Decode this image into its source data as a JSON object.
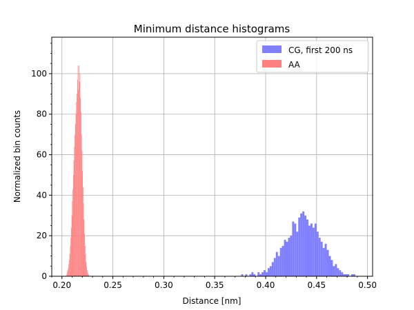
{
  "chart_data": {
    "type": "bar",
    "title": "Minimum distance histograms",
    "xlabel": "Distance [nm]",
    "ylabel": "Normalized bin counts",
    "xlim": [
      0.19,
      0.505
    ],
    "ylim": [
      0,
      118
    ],
    "x_ticks": [
      0.2,
      0.25,
      0.3,
      0.35,
      0.4,
      0.45,
      0.5
    ],
    "x_tick_labels": [
      "0.20",
      "0.25",
      "0.30",
      "0.35",
      "0.40",
      "0.45",
      "0.50"
    ],
    "y_ticks": [
      0,
      20,
      40,
      60,
      80,
      100
    ],
    "y_tick_labels": [
      "0",
      "20",
      "40",
      "60",
      "80",
      "100"
    ],
    "grid": true,
    "legend_position": "top-right",
    "series": [
      {
        "name": "CG, first 200 ns",
        "color": "#8080ff",
        "bin_width": 0.002,
        "bins": [
          [
            0.376,
            1
          ],
          [
            0.378,
            0
          ],
          [
            0.38,
            1
          ],
          [
            0.382,
            0
          ],
          [
            0.384,
            1
          ],
          [
            0.386,
            2
          ],
          [
            0.388,
            1
          ],
          [
            0.39,
            0
          ],
          [
            0.392,
            2
          ],
          [
            0.394,
            1
          ],
          [
            0.396,
            2
          ],
          [
            0.398,
            3
          ],
          [
            0.4,
            2
          ],
          [
            0.402,
            4
          ],
          [
            0.404,
            5
          ],
          [
            0.406,
            7
          ],
          [
            0.408,
            9
          ],
          [
            0.41,
            12
          ],
          [
            0.412,
            10
          ],
          [
            0.414,
            14
          ],
          [
            0.416,
            15
          ],
          [
            0.418,
            18
          ],
          [
            0.42,
            17
          ],
          [
            0.422,
            19
          ],
          [
            0.424,
            20
          ],
          [
            0.426,
            27
          ],
          [
            0.428,
            26
          ],
          [
            0.43,
            22
          ],
          [
            0.432,
            29
          ],
          [
            0.434,
            31
          ],
          [
            0.436,
            32
          ],
          [
            0.438,
            30
          ],
          [
            0.44,
            28
          ],
          [
            0.442,
            25
          ],
          [
            0.444,
            26
          ],
          [
            0.446,
            24
          ],
          [
            0.448,
            26
          ],
          [
            0.45,
            22
          ],
          [
            0.452,
            19
          ],
          [
            0.454,
            17
          ],
          [
            0.456,
            14
          ],
          [
            0.458,
            16
          ],
          [
            0.46,
            13
          ],
          [
            0.462,
            10
          ],
          [
            0.464,
            8
          ],
          [
            0.466,
            5
          ],
          [
            0.468,
            6
          ],
          [
            0.47,
            4
          ],
          [
            0.472,
            3
          ],
          [
            0.474,
            2
          ],
          [
            0.476,
            1
          ],
          [
            0.478,
            1
          ],
          [
            0.48,
            1
          ],
          [
            0.482,
            0
          ],
          [
            0.484,
            1
          ],
          [
            0.486,
            1
          ]
        ]
      },
      {
        "name": "AA",
        "color": "#ff8080",
        "bin_width": 0.0005,
        "bins": [
          [
            0.2045,
            1
          ],
          [
            0.205,
            2
          ],
          [
            0.2055,
            3
          ],
          [
            0.206,
            4
          ],
          [
            0.2065,
            6
          ],
          [
            0.207,
            8
          ],
          [
            0.2075,
            11
          ],
          [
            0.208,
            15
          ],
          [
            0.2085,
            19
          ],
          [
            0.209,
            24
          ],
          [
            0.2095,
            30
          ],
          [
            0.21,
            37
          ],
          [
            0.2105,
            43
          ],
          [
            0.211,
            50
          ],
          [
            0.2115,
            57
          ],
          [
            0.212,
            64
          ],
          [
            0.2125,
            70
          ],
          [
            0.213,
            75
          ],
          [
            0.2135,
            80
          ],
          [
            0.214,
            86
          ],
          [
            0.2145,
            90
          ],
          [
            0.215,
            97
          ],
          [
            0.2155,
            104
          ],
          [
            0.216,
            92
          ],
          [
            0.2165,
            104
          ],
          [
            0.217,
            96
          ],
          [
            0.2175,
            100
          ],
          [
            0.218,
            88
          ],
          [
            0.2185,
            81
          ],
          [
            0.219,
            70
          ],
          [
            0.2195,
            62
          ],
          [
            0.22,
            52
          ],
          [
            0.2205,
            44
          ],
          [
            0.221,
            36
          ],
          [
            0.2215,
            28
          ],
          [
            0.222,
            21
          ],
          [
            0.2225,
            15
          ],
          [
            0.223,
            11
          ],
          [
            0.2235,
            7
          ],
          [
            0.224,
            5
          ],
          [
            0.2245,
            3
          ],
          [
            0.225,
            2
          ],
          [
            0.2255,
            1
          ],
          [
            0.226,
            1
          ]
        ]
      }
    ]
  }
}
